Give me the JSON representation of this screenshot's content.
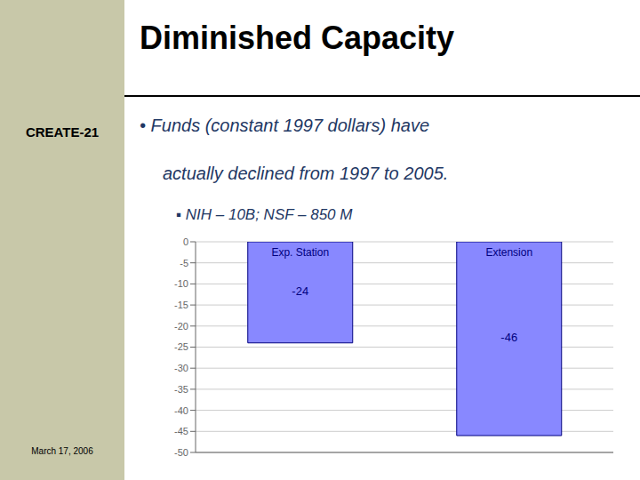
{
  "chart_data": {
    "type": "bar",
    "title": "Diminished Capacity",
    "annotations": [
      "CREATE-21",
      "March 17, 2006",
      "• Funds (constant 1997 dollars) have",
      "actually declined from 1997 to 2005.",
      "▪  NIH – 10B; NSF – 850 M"
    ],
    "categories": [
      "Exp. Station",
      "Extension"
    ],
    "values": [
      -24,
      -46
    ],
    "color": "#8888FF",
    "ylim": [
      -50,
      0
    ],
    "yticks": [
      0,
      -5,
      -10,
      -15,
      -20,
      -25,
      -30,
      -35,
      -40,
      -45,
      -50
    ],
    "grid": true,
    "data_labels": true
  }
}
